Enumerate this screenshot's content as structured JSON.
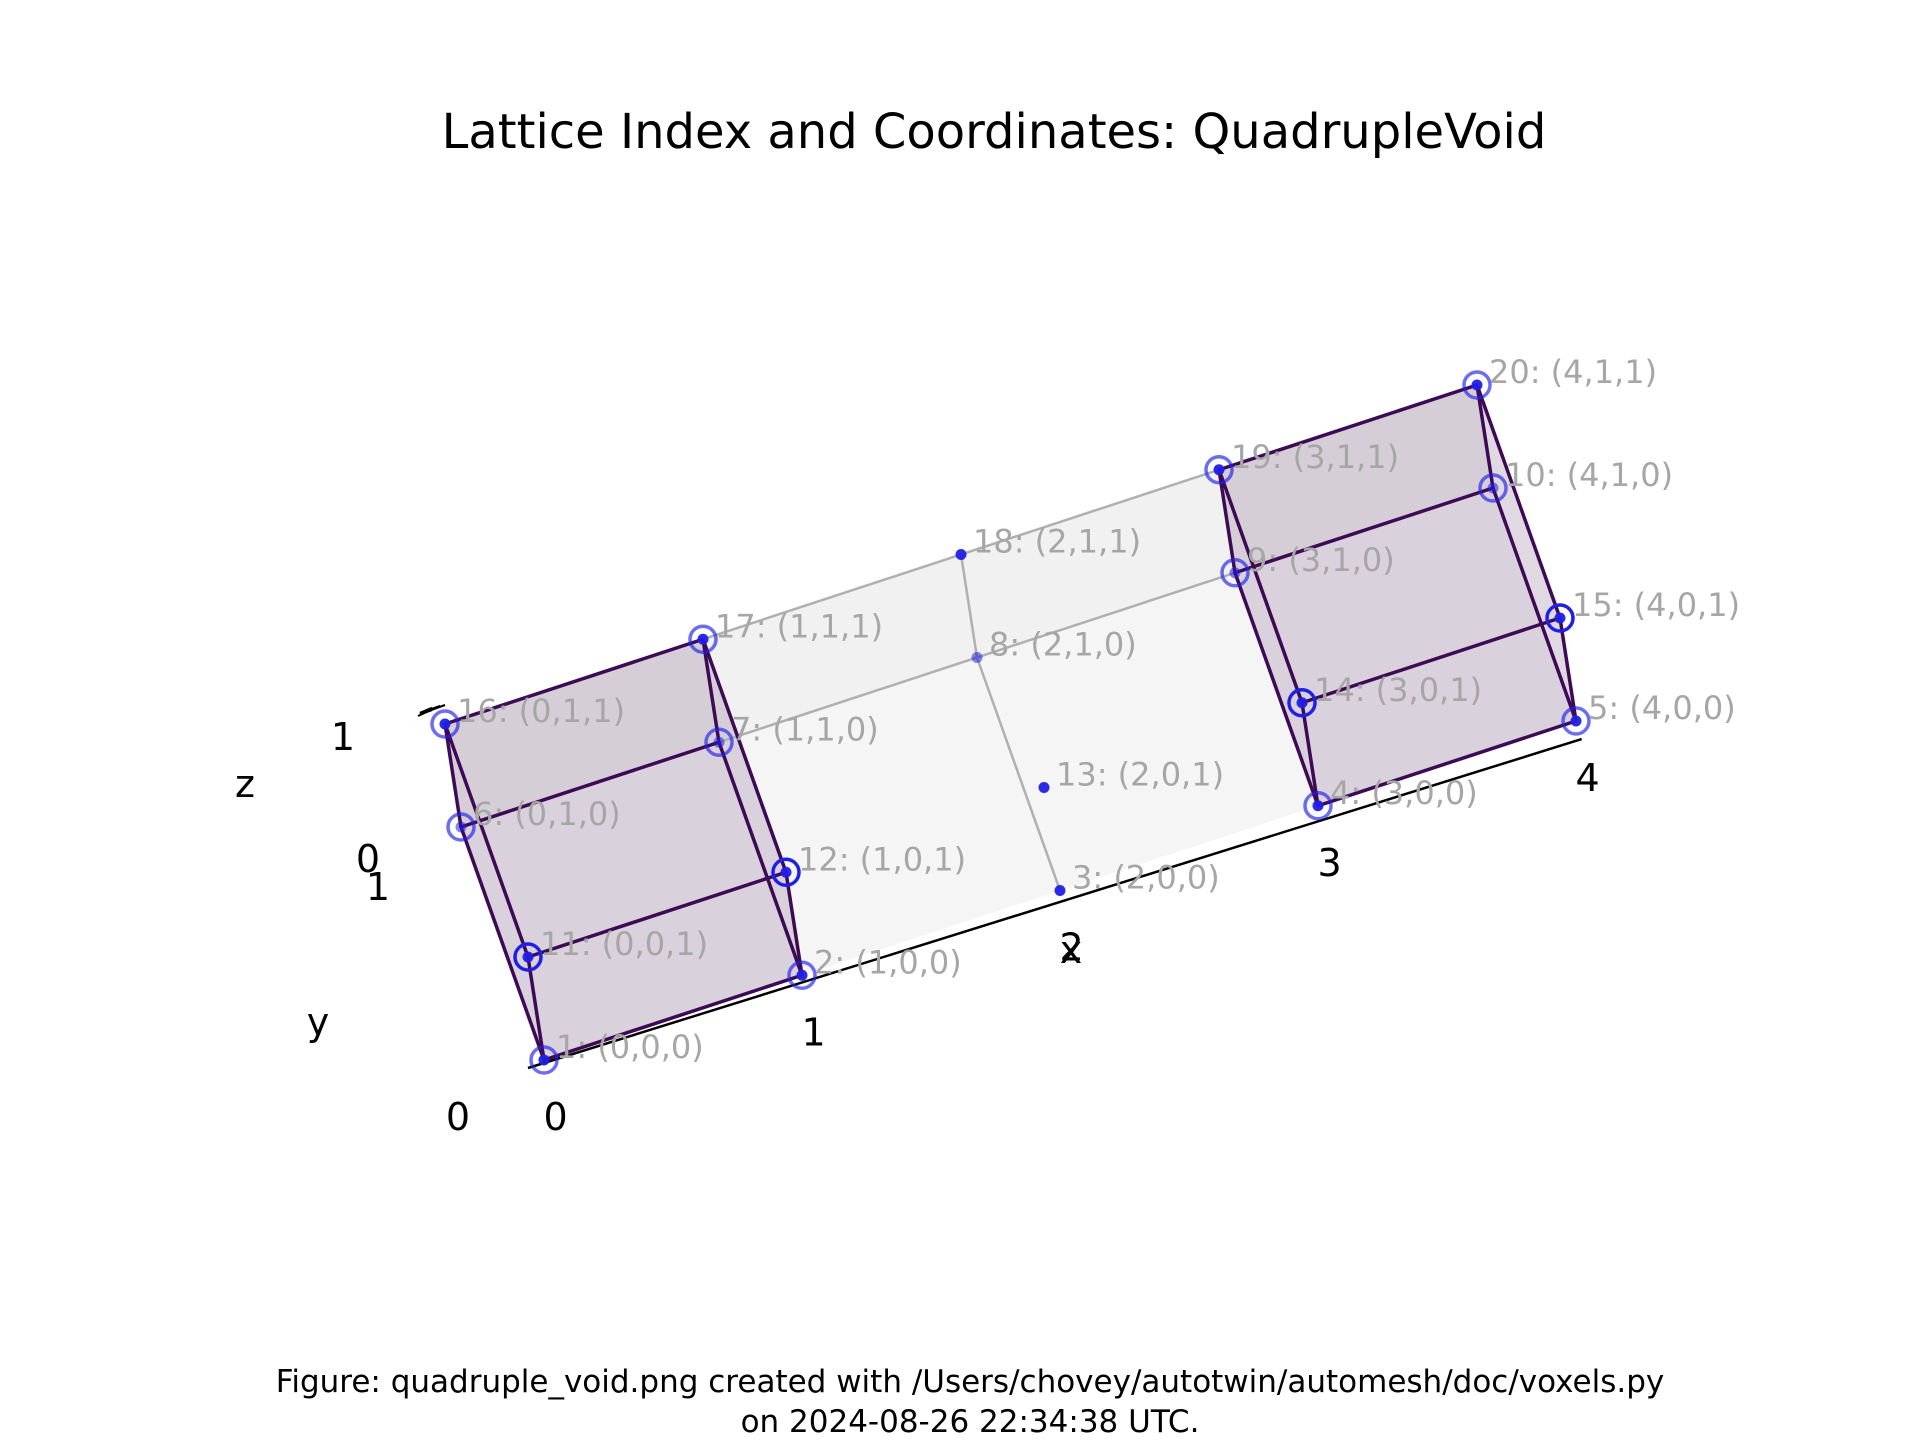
{
  "chart_data": {
    "type": "scatter",
    "projection": "3d",
    "title": "Lattice Index and Coordinates: QuadrupleVoid",
    "xlabel": "x",
    "ylabel": "y",
    "zlabel": "z",
    "x_ticks": [
      "0",
      "1",
      "2",
      "3",
      "4"
    ],
    "y_ticks": [
      "0",
      "1"
    ],
    "z_ticks": [
      "0",
      "1"
    ],
    "xlim": [
      0,
      4
    ],
    "ylim": [
      0,
      1
    ],
    "zlim": [
      0,
      1
    ],
    "grid": false,
    "points": [
      {
        "index": 1,
        "x": 0,
        "y": 0,
        "z": 0,
        "label": "1: (0,0,0)"
      },
      {
        "index": 2,
        "x": 1,
        "y": 0,
        "z": 0,
        "label": "2: (1,0,0)"
      },
      {
        "index": 3,
        "x": 2,
        "y": 0,
        "z": 0,
        "label": "3: (2,0,0)"
      },
      {
        "index": 4,
        "x": 3,
        "y": 0,
        "z": 0,
        "label": "4: (3,0,0)"
      },
      {
        "index": 5,
        "x": 4,
        "y": 0,
        "z": 0,
        "label": "5: (4,0,0)"
      },
      {
        "index": 6,
        "x": 0,
        "y": 1,
        "z": 0,
        "label": "6: (0,1,0)"
      },
      {
        "index": 7,
        "x": 1,
        "y": 1,
        "z": 0,
        "label": "7: (1,1,0)"
      },
      {
        "index": 8,
        "x": 2,
        "y": 1,
        "z": 0,
        "label": "8: (2,1,0)"
      },
      {
        "index": 9,
        "x": 3,
        "y": 1,
        "z": 0,
        "label": "9: (3,1,0)"
      },
      {
        "index": 10,
        "x": 4,
        "y": 1,
        "z": 0,
        "label": "10: (4,1,0)"
      },
      {
        "index": 11,
        "x": 0,
        "y": 0,
        "z": 1,
        "label": "11: (0,0,1)"
      },
      {
        "index": 12,
        "x": 1,
        "y": 0,
        "z": 1,
        "label": "12: (1,0,1)"
      },
      {
        "index": 13,
        "x": 2,
        "y": 0,
        "z": 1,
        "label": "13: (2,0,1)"
      },
      {
        "index": 14,
        "x": 3,
        "y": 0,
        "z": 1,
        "label": "14: (3,0,1)"
      },
      {
        "index": 15,
        "x": 4,
        "y": 0,
        "z": 1,
        "label": "15: (4,0,1)"
      },
      {
        "index": 16,
        "x": 0,
        "y": 1,
        "z": 1,
        "label": "16: (0,1,1)"
      },
      {
        "index": 17,
        "x": 1,
        "y": 1,
        "z": 1,
        "label": "17: (1,1,1)"
      },
      {
        "index": 18,
        "x": 2,
        "y": 1,
        "z": 1,
        "label": "18: (2,1,1)"
      },
      {
        "index": 19,
        "x": 3,
        "y": 1,
        "z": 1,
        "label": "19: (3,1,1)"
      },
      {
        "index": 20,
        "x": 4,
        "y": 1,
        "z": 1,
        "label": "20: (4,1,1)"
      }
    ],
    "voxels": [
      {
        "x": [
          0,
          1
        ],
        "y": [
          0,
          1
        ],
        "z": [
          0,
          1
        ],
        "filled": true
      },
      {
        "x": [
          3,
          4
        ],
        "y": [
          0,
          1
        ],
        "z": [
          0,
          1
        ],
        "filled": true
      }
    ],
    "colors": {
      "voxel_fill": "#7a5a85",
      "voxel_edge": "#3d0b55",
      "marker": "#1f1fe6",
      "label": "#a6a6a6",
      "lattice_edge": "#b0b0b0"
    }
  },
  "caption": {
    "line1": "Figure: quadruple_void.png created with /Users/chovey/autotwin/automesh/doc/voxels.py",
    "line2": "on 2024-08-26 22:34:38 UTC."
  }
}
